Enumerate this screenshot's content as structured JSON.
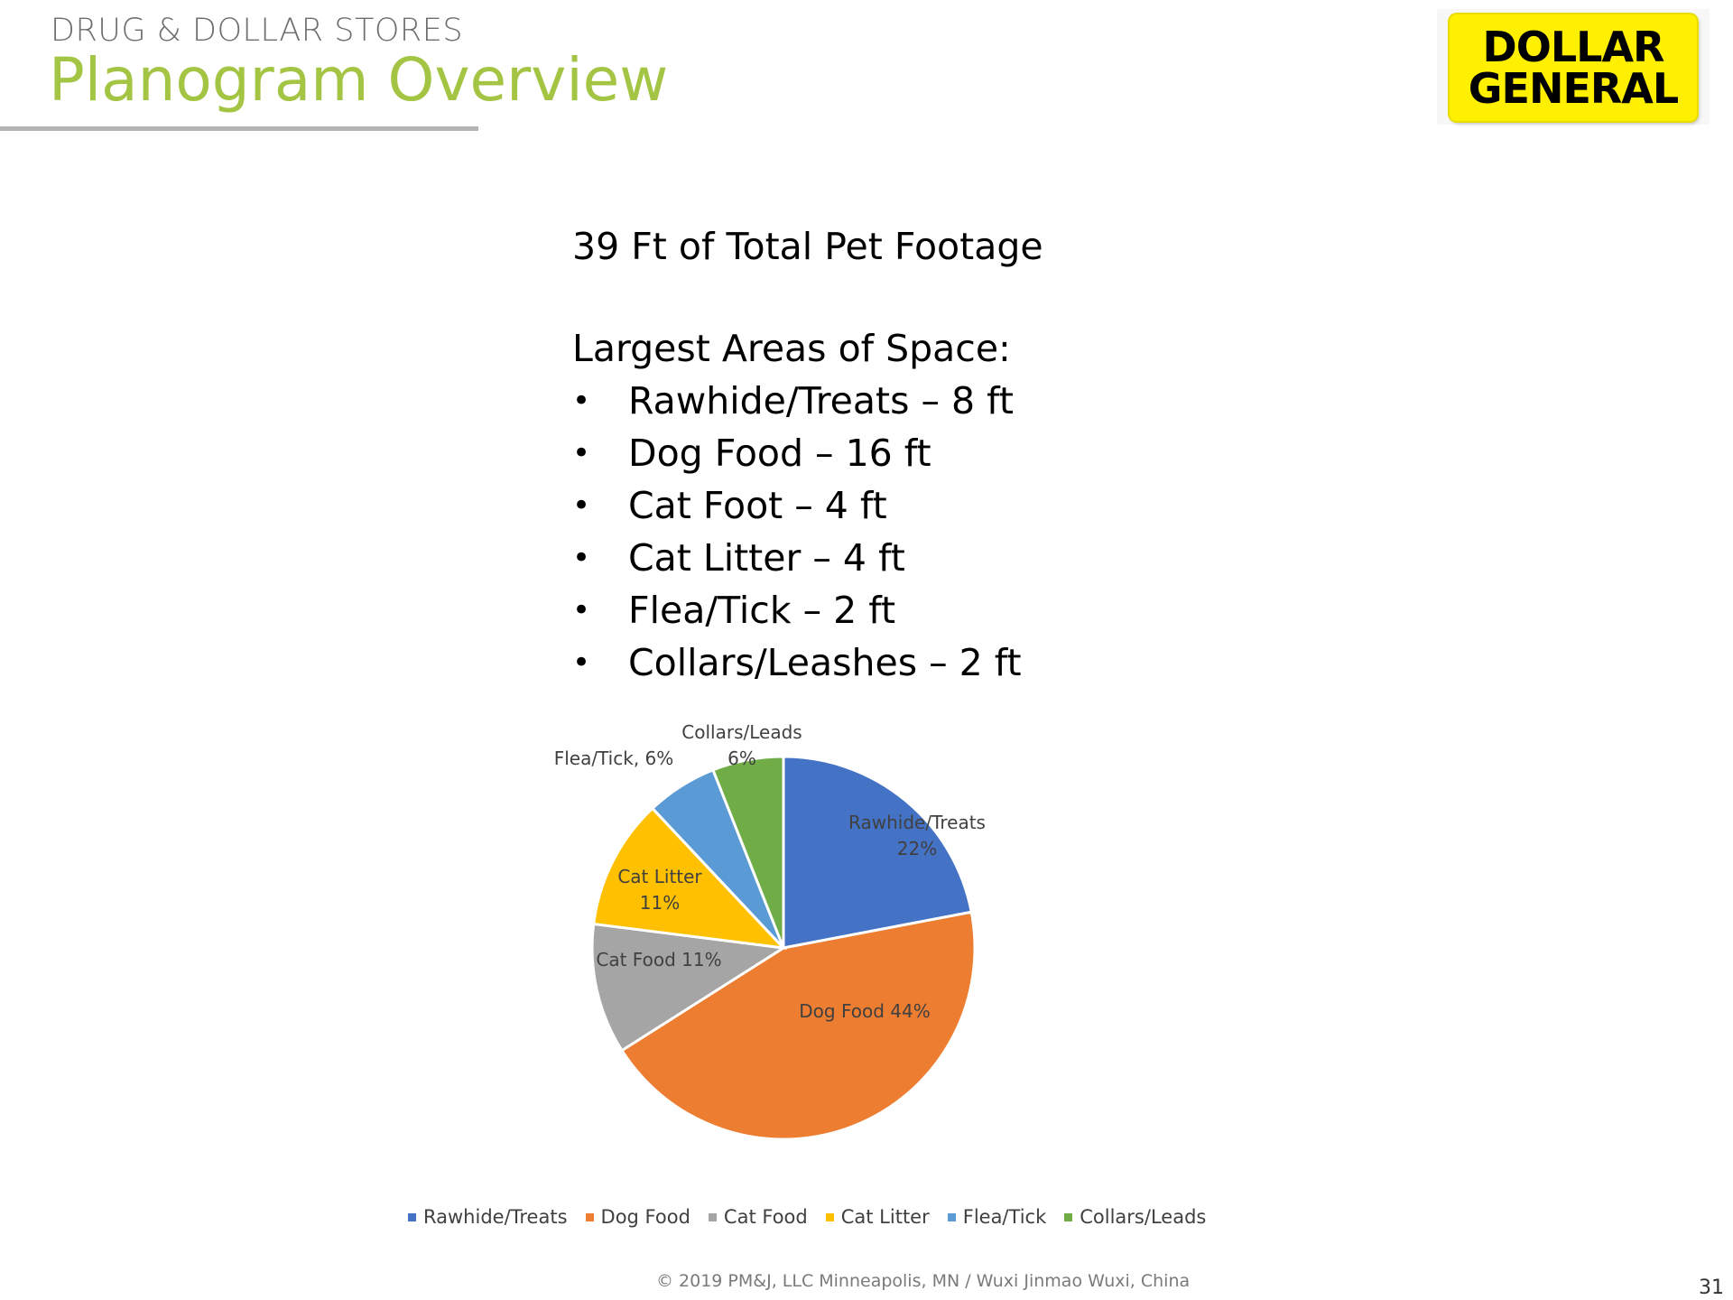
{
  "header": {
    "kicker": "DRUG & DOLLAR STORES",
    "title": "Planogram Overview"
  },
  "logo": {
    "line1": "DOLLAR",
    "line2": "GENERAL",
    "color": "#ffef00"
  },
  "summary": "39 Ft of Total Pet Footage",
  "section_heading": "Largest Areas of Space:",
  "bullets": [
    "Rawhide/Treats – 8 ft",
    "Dog Food – 16 ft",
    "Cat Foot – 4 ft",
    "Cat Litter – 4 ft",
    "Flea/Tick – 2 ft",
    "Collars/Leashes – 2 ft"
  ],
  "bullet_glyph": "•",
  "chart_data": {
    "type": "pie",
    "categories": [
      "Rawhide/Treats",
      "Dog Food",
      "Cat Food",
      "Cat Litter",
      "Flea/Tick",
      "Collars/Leads"
    ],
    "values": [
      22,
      44,
      11,
      11,
      6,
      6
    ],
    "colors": [
      "#4472c4",
      "#ed7d31",
      "#a5a5a5",
      "#ffc000",
      "#5b9bd5",
      "#70ad47"
    ],
    "data_labels": [
      [
        "Rawhide/Treats",
        "22%"
      ],
      [
        "Dog Food 44%"
      ],
      [
        "Cat Food 11%"
      ],
      [
        "Cat Litter",
        "11%"
      ],
      [
        "Flea/Tick,  6%"
      ],
      [
        "Collars/Leads",
        "6%"
      ]
    ],
    "legend": [
      "Rawhide/Treats",
      "Dog Food",
      "Cat Food",
      "Cat Litter",
      "Flea/Tick",
      "Collars/Leads"
    ],
    "legend_position": "bottom"
  },
  "footer": "© 2019 PM&J, LLC  Minneapolis, MN  /  Wuxi Jinmao  Wuxi, China",
  "page_number": "31"
}
